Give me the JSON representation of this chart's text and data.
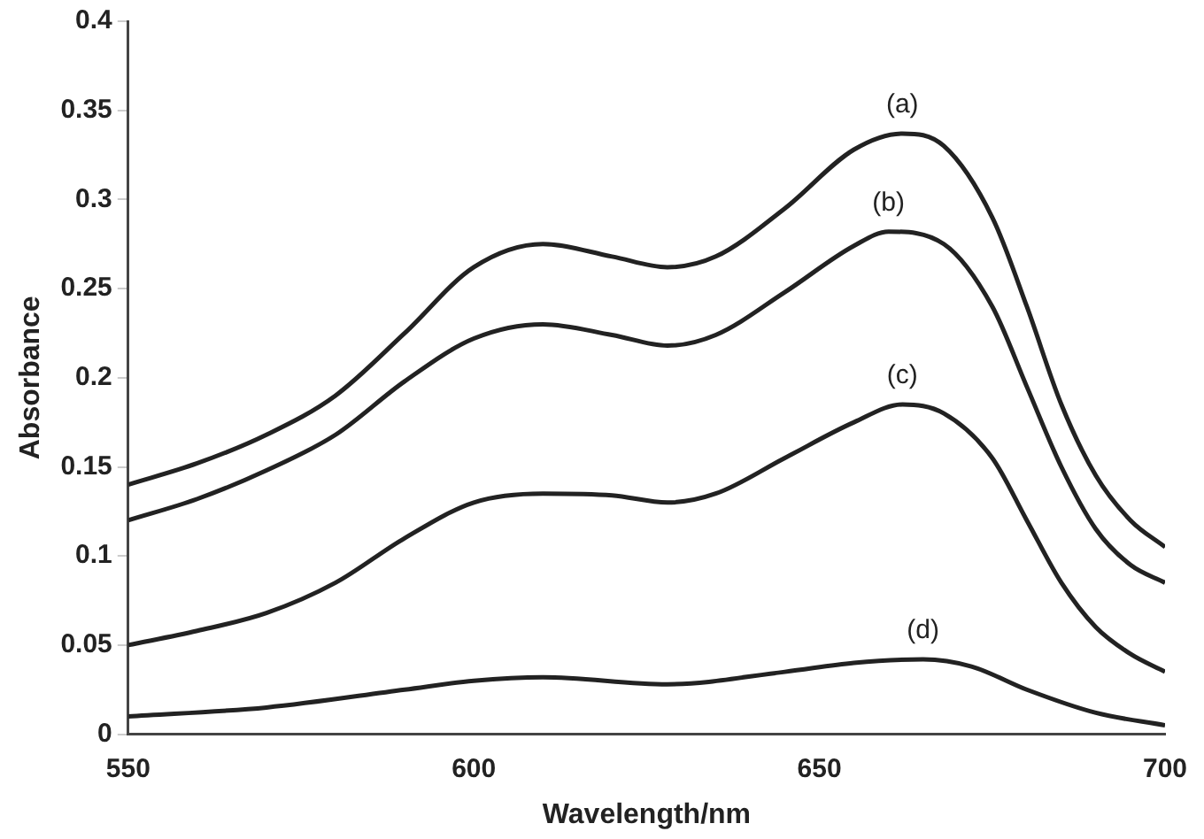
{
  "chart_data": {
    "type": "line",
    "xlabel": "Wavelength/nm",
    "ylabel": "Absorbance",
    "xlim": [
      550,
      700
    ],
    "xticks": [
      550,
      600,
      650,
      700
    ],
    "ylim": [
      0,
      0.4
    ],
    "yticks": [
      0,
      0.05,
      0.1,
      0.15,
      0.2,
      0.25,
      0.3,
      0.35,
      0.4
    ],
    "grid": false,
    "legend": false,
    "marker": "none",
    "line_style": "solid",
    "series": [
      {
        "name": "(a)",
        "color": "#222222",
        "x": [
          550,
          560,
          570,
          580,
          590,
          600,
          610,
          620,
          628,
          635,
          645,
          655,
          662,
          668,
          675,
          680,
          685,
          690,
          695,
          700
        ],
        "values": [
          0.14,
          0.152,
          0.168,
          0.19,
          0.225,
          0.262,
          0.275,
          0.268,
          0.262,
          0.268,
          0.295,
          0.328,
          0.337,
          0.33,
          0.29,
          0.24,
          0.185,
          0.145,
          0.12,
          0.105
        ]
      },
      {
        "name": "(b)",
        "color": "#222222",
        "x": [
          550,
          560,
          570,
          580,
          590,
          600,
          610,
          620,
          628,
          635,
          645,
          655,
          660,
          668,
          675,
          680,
          685,
          690,
          695,
          700
        ],
        "values": [
          0.12,
          0.132,
          0.148,
          0.168,
          0.198,
          0.222,
          0.23,
          0.224,
          0.218,
          0.224,
          0.248,
          0.274,
          0.282,
          0.275,
          0.24,
          0.195,
          0.15,
          0.115,
          0.095,
          0.085
        ]
      },
      {
        "name": "(c)",
        "color": "#222222",
        "x": [
          550,
          560,
          570,
          580,
          590,
          600,
          610,
          620,
          628,
          635,
          645,
          655,
          662,
          668,
          675,
          680,
          685,
          690,
          695,
          700
        ],
        "values": [
          0.05,
          0.058,
          0.068,
          0.085,
          0.11,
          0.13,
          0.135,
          0.134,
          0.13,
          0.135,
          0.155,
          0.175,
          0.185,
          0.18,
          0.155,
          0.12,
          0.085,
          0.06,
          0.045,
          0.035
        ]
      },
      {
        "name": "(d)",
        "color": "#222222",
        "x": [
          550,
          570,
          590,
          600,
          610,
          628,
          645,
          655,
          665,
          672,
          680,
          690,
          700
        ],
        "values": [
          0.01,
          0.015,
          0.025,
          0.03,
          0.032,
          0.028,
          0.035,
          0.04,
          0.042,
          0.038,
          0.025,
          0.012,
          0.005
        ]
      }
    ]
  }
}
